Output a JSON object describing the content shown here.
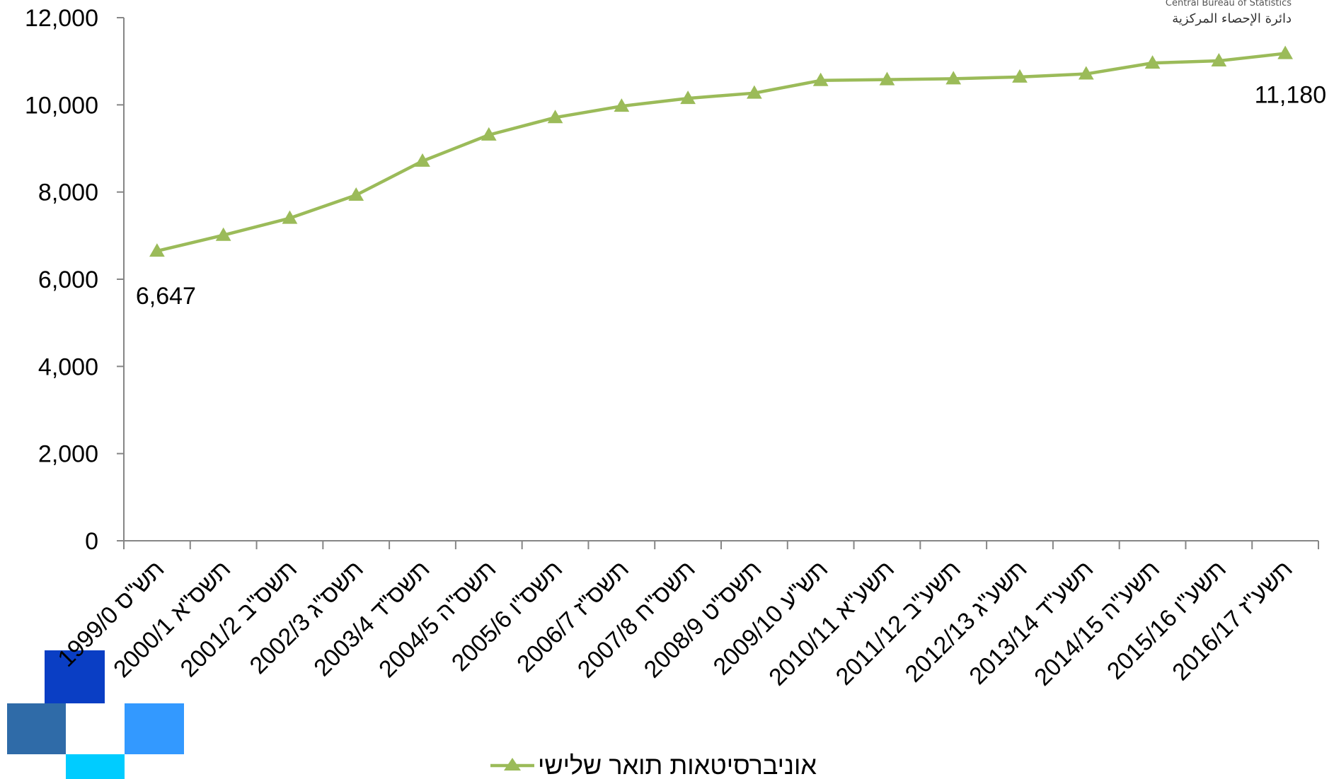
{
  "logo": {
    "english": "Central Bureau of Statistics",
    "arabic": "دائرة الإحصاء المركزية"
  },
  "chart_data": {
    "type": "line",
    "title": "",
    "xlabel": "",
    "ylabel": "",
    "ylim": [
      0,
      12000
    ],
    "yticks": [
      "0",
      "2,000",
      "4,000",
      "6,000",
      "8,000",
      "10,000",
      "12,000"
    ],
    "grid": false,
    "legend_position": "bottom",
    "categories": [
      "1999/0 תש\"ס",
      "2000/1 תשס\"א",
      "2001/2 תשס\"ב",
      "2002/3 תשס\"ג",
      "2003/4 תשס\"ד",
      "2004/5 תשס\"ה",
      "2005/6 תשס\"ו",
      "2006/7 תשס\"ז",
      "2007/8 תשס\"ח",
      "2008/9 תשס\"ט",
      "2009/10 תש\"ע",
      "2010/11 תשע\"א",
      "2011/12 תשע\"ב",
      "2012/13 תשע\"ג",
      "2013/14 תשע\"ד",
      "2014/15 תשע\"ה",
      "2015/16 תשע\"ו",
      "2016/17 תשע\"ז"
    ],
    "series": [
      {
        "name": "אוניברסיטאות תואר שלישי",
        "color": "#9bbb59",
        "marker": "triangle",
        "values": [
          6647,
          7010,
          7400,
          7930,
          8710,
          9310,
          9710,
          9970,
          10150,
          10270,
          10560,
          10580,
          10600,
          10640,
          10710,
          10960,
          11010,
          11180
        ]
      }
    ],
    "annotations": [
      {
        "index": 0,
        "label": "6,647"
      },
      {
        "index": 17,
        "label": "11,180"
      }
    ]
  }
}
